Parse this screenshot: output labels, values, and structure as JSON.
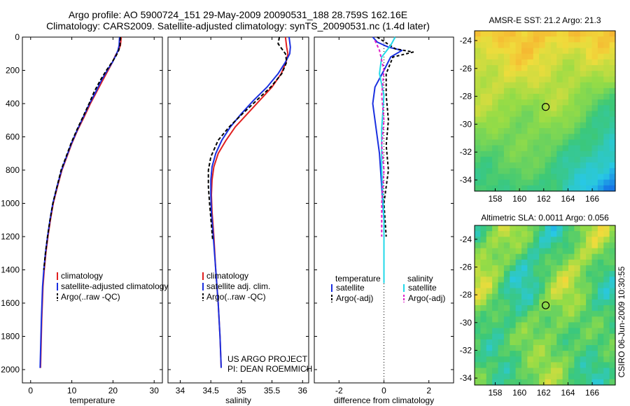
{
  "header": {
    "line1": "Argo profile: AO 5900724_151 29-May-2009 20090531_188 28.759S 162.16E",
    "line2": "Climatology: CARS2009. Satellite-adjusted climatology: synTS_20090531.nc (1.4d later)"
  },
  "side_label": "CSIRO 06-Jun-2009 10:30:55",
  "project_note": {
    "line1": "US ARGO PROJECT",
    "line2": "PI: DEAN ROEMMICH"
  },
  "colors": {
    "climatology": "#e02020",
    "satellite": "#1a2fe0",
    "argo": "#000000",
    "sat_salt": "#22d8e8",
    "argo_salt": "#e020c8"
  },
  "chart_data": [
    {
      "type": "line",
      "xlabel": "temperature",
      "xticks": [
        0,
        10,
        20,
        30
      ],
      "xlim": [
        -2,
        32
      ],
      "yticks": [
        0,
        200,
        400,
        600,
        800,
        1000,
        1200,
        1400,
        1600,
        1800,
        2000
      ],
      "ylim": [
        2080,
        0
      ],
      "legend": [
        "climatology",
        "satellite-adjusted climatology",
        "Argo(..raw -QC)"
      ],
      "series": [
        {
          "name": "climatology",
          "color": "#e02020",
          "dash": "",
          "x": [
            22.0,
            21.8,
            21.3,
            20.6,
            19.9,
            18.8,
            17.5,
            16.0,
            14.5,
            13.0,
            11.4,
            10.0,
            8.8,
            7.6,
            6.5,
            5.5,
            4.8,
            4.2,
            3.7,
            3.3,
            3.0,
            2.7,
            2.4
          ],
          "y": [
            0,
            50,
            80,
            110,
            150,
            200,
            260,
            330,
            400,
            480,
            560,
            640,
            720,
            800,
            900,
            1000,
            1100,
            1200,
            1300,
            1400,
            1500,
            1700,
            1990
          ]
        },
        {
          "name": "satellite-adjusted climatology",
          "color": "#1a2fe0",
          "dash": "",
          "x": [
            21.6,
            21.5,
            21.2,
            20.7,
            19.9,
            18.6,
            17.2,
            15.8,
            14.3,
            12.8,
            11.3,
            9.9,
            8.7,
            7.5,
            6.4,
            5.4,
            4.7,
            4.1,
            3.6,
            3.2,
            2.9,
            2.6,
            2.3
          ],
          "y": [
            0,
            50,
            80,
            110,
            150,
            200,
            260,
            330,
            400,
            480,
            560,
            640,
            720,
            800,
            900,
            1000,
            1100,
            1200,
            1300,
            1400,
            1500,
            1700,
            1990
          ]
        },
        {
          "name": "Argo(..raw -QC)",
          "color": "#000000",
          "dash": "5,3",
          "x": [
            21.8,
            21.7,
            21.4,
            20.8,
            19.8,
            18.4,
            16.9,
            15.4,
            14.2,
            12.7,
            11.2,
            9.8,
            8.6,
            7.4,
            6.4,
            5.4,
            4.7,
            4.1,
            3.6,
            3.2
          ],
          "y": [
            0,
            50,
            80,
            110,
            150,
            200,
            260,
            330,
            400,
            480,
            560,
            640,
            720,
            800,
            900,
            1000,
            1100,
            1200,
            1300,
            1400
          ]
        }
      ]
    },
    {
      "type": "line",
      "xlabel": "salinity",
      "xticks": [
        34,
        34.5,
        35,
        35.5,
        36
      ],
      "xlim": [
        33.8,
        36.1
      ],
      "yticks": [
        0,
        200,
        400,
        600,
        800,
        1000,
        1200,
        1400,
        1600,
        1800,
        2000
      ],
      "ylim": [
        2080,
        0
      ],
      "legend": [
        "climatology",
        "satellite adj. clim.",
        "Argo(..raw -QC)"
      ],
      "series": [
        {
          "name": "climatology",
          "color": "#e02020",
          "dash": "",
          "x": [
            35.72,
            35.74,
            35.76,
            35.73,
            35.65,
            35.5,
            35.3,
            35.1,
            34.9,
            34.75,
            34.62,
            34.55,
            34.52,
            34.51,
            34.52,
            34.55,
            34.58,
            34.62,
            34.65,
            34.67
          ],
          "y": [
            0,
            60,
            100,
            150,
            220,
            300,
            380,
            460,
            540,
            620,
            700,
            780,
            860,
            950,
            1050,
            1200,
            1400,
            1600,
            1800,
            1990
          ]
        },
        {
          "name": "satellite adj. clim.",
          "color": "#1a2fe0",
          "dash": "",
          "x": [
            35.78,
            35.8,
            35.79,
            35.72,
            35.6,
            35.42,
            35.2,
            35.0,
            34.82,
            34.68,
            34.58,
            34.52,
            34.5,
            34.5,
            34.51,
            34.54,
            34.58,
            34.62,
            34.65,
            34.67
          ],
          "y": [
            0,
            60,
            100,
            150,
            220,
            300,
            380,
            460,
            540,
            620,
            700,
            780,
            860,
            950,
            1050,
            1200,
            1400,
            1600,
            1800,
            1990
          ]
        },
        {
          "name": "Argo(..raw -QC)",
          "color": "#000000",
          "dash": "5,3",
          "x": [
            35.62,
            35.6,
            35.72,
            35.74,
            35.66,
            35.48,
            35.25,
            35.02,
            34.8,
            34.62,
            34.5,
            34.46,
            34.46,
            34.48,
            34.53
          ],
          "y": [
            0,
            40,
            100,
            150,
            220,
            300,
            380,
            460,
            540,
            620,
            720,
            800,
            900,
            1000,
            1220
          ]
        }
      ]
    },
    {
      "type": "line",
      "xlabel": "difference from climatology",
      "xticks": [
        -2,
        0,
        2
      ],
      "xlim": [
        -3.1,
        3.1
      ],
      "yticks": [
        0,
        200,
        400,
        600,
        800,
        1000,
        1200,
        1400,
        1600,
        1800,
        2000
      ],
      "ylim": [
        2080,
        0
      ],
      "legend": [
        "temperature",
        "satellite",
        "Argo(-adj)",
        "salinity",
        "satellite",
        "Argo(-adj)"
      ],
      "series": [
        {
          "name": "satellite",
          "color": "#1a2fe0",
          "dash": "",
          "x": [
            -0.5,
            -0.3,
            0.2,
            0.8,
            0.3,
            0.0,
            -0.4,
            -0.5,
            -0.4,
            -0.3,
            -0.2,
            -0.1,
            0.0,
            0.0
          ],
          "y": [
            0,
            30,
            60,
            80,
            120,
            200,
            300,
            400,
            500,
            600,
            700,
            900,
            1100,
            1480
          ]
        },
        {
          "name": "Argo(-adj)",
          "color": "#000000",
          "dash": "4,3",
          "x": [
            -0.3,
            0.5,
            1.3,
            0.4,
            0.1,
            0.1,
            0.2,
            0.1,
            0.2,
            0.0,
            0.1
          ],
          "y": [
            0,
            70,
            90,
            120,
            220,
            350,
            500,
            650,
            800,
            1000,
            1200
          ]
        },
        {
          "name": "satellite",
          "color": "#22d8e8",
          "dash": "",
          "x": [
            0.5,
            0.3,
            -0.1,
            -0.2,
            0.0,
            -0.1,
            -0.1,
            0.0,
            0.0
          ],
          "y": [
            0,
            50,
            120,
            220,
            350,
            550,
            800,
            1100,
            1480
          ]
        },
        {
          "name": "Argo(-adj)",
          "color": "#e020c8",
          "dash": "4,3",
          "x": [
            -0.4,
            -0.2,
            0.0,
            -0.1,
            0.0,
            -0.1,
            0.0,
            -0.1,
            -0.1
          ],
          "y": [
            20,
            80,
            200,
            350,
            500,
            650,
            800,
            1000,
            1200
          ]
        }
      ]
    },
    {
      "type": "heatmap",
      "title": "AMSR-E SST: 21.2 Argo: 21.3",
      "xticks": [
        158,
        160,
        162,
        164,
        166
      ],
      "xlim": [
        156.3,
        167.9
      ],
      "yticks": [
        -24,
        -26,
        -28,
        -30,
        -32,
        -34
      ],
      "ylim": [
        -23.3,
        -34.8
      ],
      "marker": {
        "x": 162.16,
        "y": -28.76
      }
    },
    {
      "type": "heatmap",
      "title": "Altimetric SLA: 0.0011 Argo: 0.056",
      "xticks": [
        158,
        160,
        162,
        164,
        166
      ],
      "xlim": [
        156.3,
        167.9
      ],
      "yticks": [
        -24,
        -26,
        -28,
        -30,
        -32,
        -34
      ],
      "ylim": [
        -23.0,
        -34.5
      ],
      "marker": {
        "x": 162.16,
        "y": -28.76
      }
    }
  ]
}
